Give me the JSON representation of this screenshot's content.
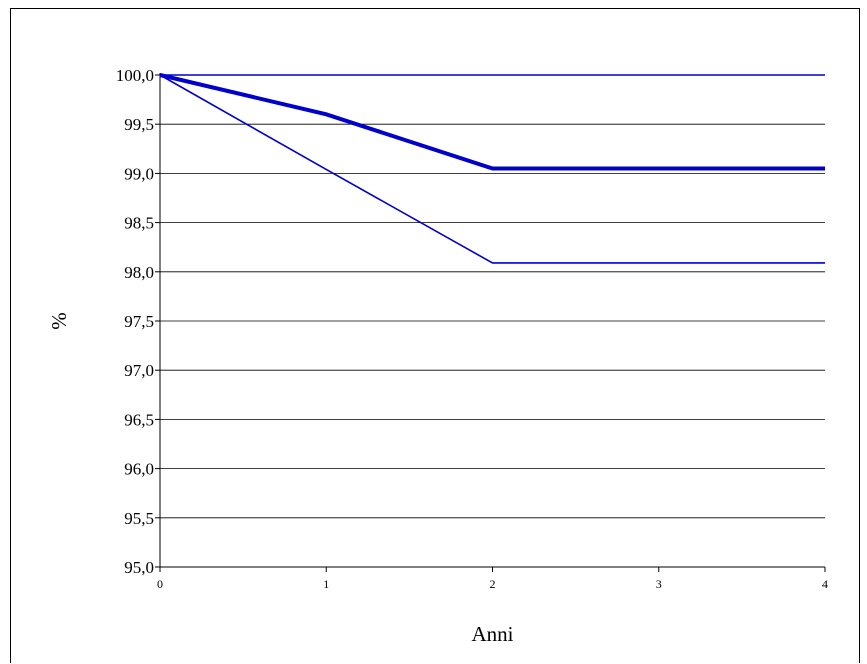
{
  "chart_data": {
    "type": "line",
    "title": "",
    "xlabel": "Anni",
    "ylabel": "%",
    "x": [
      0,
      1,
      2,
      3,
      4
    ],
    "xlim": [
      0,
      4
    ],
    "ylim": [
      95.0,
      100.0
    ],
    "x_ticks": [
      "0",
      "1",
      "2",
      "3",
      "4"
    ],
    "y_ticks": [
      "95,0",
      "95,5",
      "96,0",
      "96,5",
      "97,0",
      "97,5",
      "98,0",
      "98,5",
      "99,0",
      "99,5",
      "100,0"
    ],
    "y_tick_values": [
      95.0,
      95.5,
      96.0,
      96.5,
      97.0,
      97.5,
      98.0,
      98.5,
      99.0,
      99.5,
      100.0
    ],
    "grid": true,
    "legend": false,
    "series": [
      {
        "values": [
          100.0,
          100.0,
          100.0,
          100.0,
          100.0
        ],
        "color": "#0000CC",
        "weight": "thin"
      },
      {
        "values": [
          100.0,
          99.6,
          99.05,
          99.05,
          99.05
        ],
        "color": "#0000CC",
        "weight": "thick"
      },
      {
        "values": [
          100.0,
          99.04,
          98.09,
          98.09,
          98.09
        ],
        "color": "#0000CC",
        "weight": "thin"
      }
    ]
  }
}
